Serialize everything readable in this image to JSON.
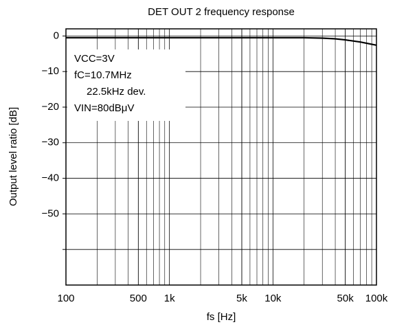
{
  "chart_data": {
    "type": "line",
    "title": "DET OUT 2 frequency response",
    "xlabel": "fs [Hz]",
    "ylabel": "Output level ratio [dB]",
    "annotations": [
      "VCC=3V",
      "fC=10.7MHz",
      "22.5kHz dev.",
      "VIN=80dBμV"
    ],
    "xscale": "log",
    "xlim": [
      100,
      100000
    ],
    "xticks": [
      100,
      500,
      {
        "value": 1000,
        "label": "1k"
      },
      {
        "value": 5000,
        "label": "5k"
      },
      {
        "value": 10000,
        "label": "10k"
      },
      {
        "value": 50000,
        "label": "50k"
      },
      {
        "value": 100000,
        "label": "100k"
      }
    ],
    "minor_grid": true,
    "ylim": [
      -70,
      2
    ],
    "yticks": [
      0,
      {
        "value": -10,
        "label": "−10"
      },
      {
        "value": -20,
        "label": "−20"
      },
      {
        "value": -30,
        "label": "−30"
      },
      {
        "value": -40,
        "label": "−40"
      },
      {
        "value": -50,
        "label": "−50"
      },
      {
        "value": -60,
        "label": null
      }
    ],
    "grid": true,
    "series": [
      {
        "color": "#000000",
        "x": [
          100,
          1000,
          10000,
          20000,
          30000,
          40000,
          50000,
          70000,
          100000
        ],
        "values": [
          -0.5,
          -0.5,
          -0.5,
          -0.5,
          -0.6,
          -0.8,
          -1.1,
          -1.7,
          -2.6
        ]
      }
    ]
  }
}
